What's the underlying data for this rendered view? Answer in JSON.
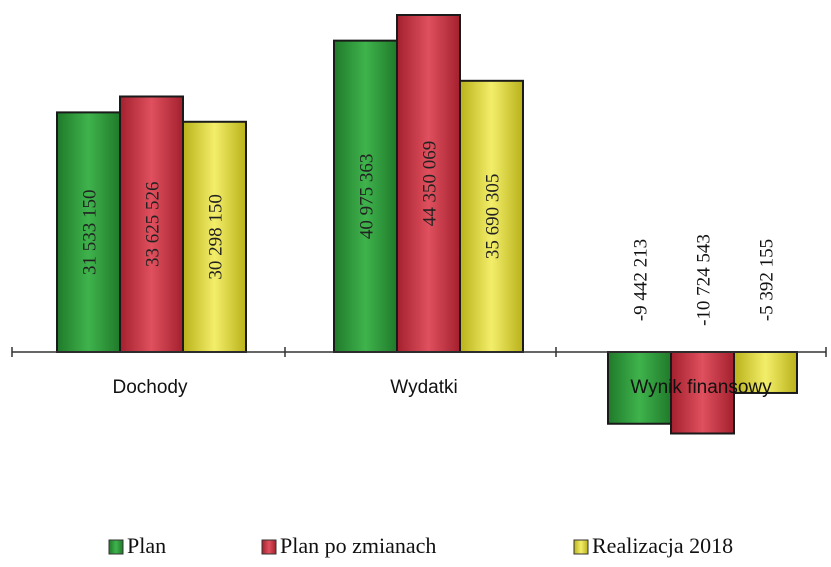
{
  "chart_data": {
    "type": "bar",
    "categories": [
      "Dochody",
      "Wydatki",
      "Wynik finansowy"
    ],
    "series": [
      {
        "name": "Plan",
        "values": [
          31533150,
          40975363,
          -9442213
        ],
        "labels": [
          "31 533 150",
          "40 975 363",
          "-9 442 213"
        ],
        "color": "#2e9e3a"
      },
      {
        "name": "Plan po zmianach",
        "values": [
          33625526,
          44350069,
          -10724543
        ],
        "labels": [
          "33 625 526",
          "44 350 069",
          "-10 724 543"
        ],
        "color": "#cc3340"
      },
      {
        "name": "Realizacja 2018",
        "values": [
          30298150,
          35690305,
          -5392155
        ],
        "labels": [
          "30 298 150",
          "35 690 305",
          "-5 392 155"
        ],
        "color": "#e3d92a"
      }
    ],
    "legend_position": "bottom",
    "grid": false,
    "ylim": [
      -12000000,
      46000000
    ]
  }
}
